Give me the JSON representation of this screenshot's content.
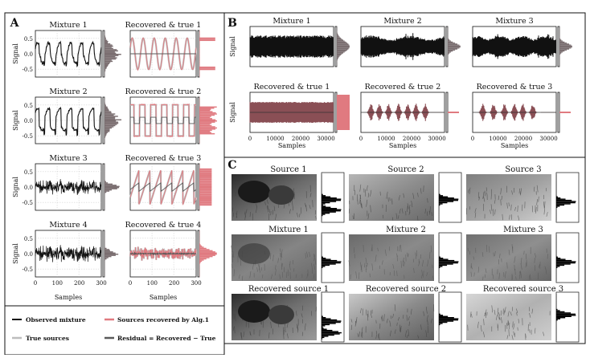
{
  "colors": {
    "black": "#111111",
    "observed": "#111111",
    "recovered": "#e07a80",
    "recovered_dark": "#8a4f55",
    "true": "#bdbdbd",
    "residual": "#5a5a5a",
    "hist": "#7a6e70",
    "image_grey": "#8c8c8c"
  },
  "panels": {
    "A": {
      "letter": "A",
      "ylabel": "Signal",
      "xlabel": "Samples",
      "left_titles": [
        "Mixture 1",
        "Mixture 2",
        "Mixture 3",
        "Mixture 4"
      ],
      "right_titles": [
        "Recovered & true 1",
        "Recovered & true 2",
        "Recovered & true 3",
        "Recovered & true 4"
      ],
      "yticks": [
        "0.5",
        "0.0",
        "-0.5"
      ],
      "xticks": [
        "0",
        "100",
        "200",
        "300"
      ],
      "legend": {
        "observed": "Observed mixture",
        "recovered": "Sources recovered by Alg.1",
        "true": "True sources",
        "residual": "Residual = Recovered − True"
      }
    },
    "B": {
      "letter": "B",
      "ylabel": "Signal",
      "xlabel": "Samples",
      "top_titles": [
        "Mixture 1",
        "Mixture 2",
        "Mixture 3"
      ],
      "bottom_titles": [
        "Recovered & true  1",
        "Recovered & true  2",
        "Recovered & true  3"
      ],
      "xticks": [
        "0",
        "10000",
        "20000",
        "30000"
      ]
    },
    "C": {
      "letter": "C",
      "row1": [
        "Source 1",
        "Source 2",
        "Source 3"
      ],
      "row2": [
        "Mixture 1",
        "Mixture 2",
        "Mixture 3"
      ],
      "row3": [
        "Recovered source 1",
        "Recovered source 2",
        "Recovered source 3"
      ]
    }
  },
  "chart_data": [
    {
      "type": "line",
      "panel": "A",
      "description_of_series": "Four observed mixtures of 300 samples each and recovered vs true sources (sine, square, sawtooth, noise)",
      "x_range": [
        0,
        300
      ],
      "ylim": [
        -0.75,
        0.75
      ],
      "sources": [
        "sine",
        "square",
        "sawtooth",
        "noise"
      ],
      "source_amplitude_approx": [
        0.5,
        0.5,
        0.55,
        0.3
      ]
    },
    {
      "type": "line",
      "panel": "B",
      "x_range": [
        0,
        33000
      ],
      "ylim": [
        -1,
        1
      ],
      "sources": [
        "noise",
        "speech",
        "speech"
      ]
    }
  ]
}
